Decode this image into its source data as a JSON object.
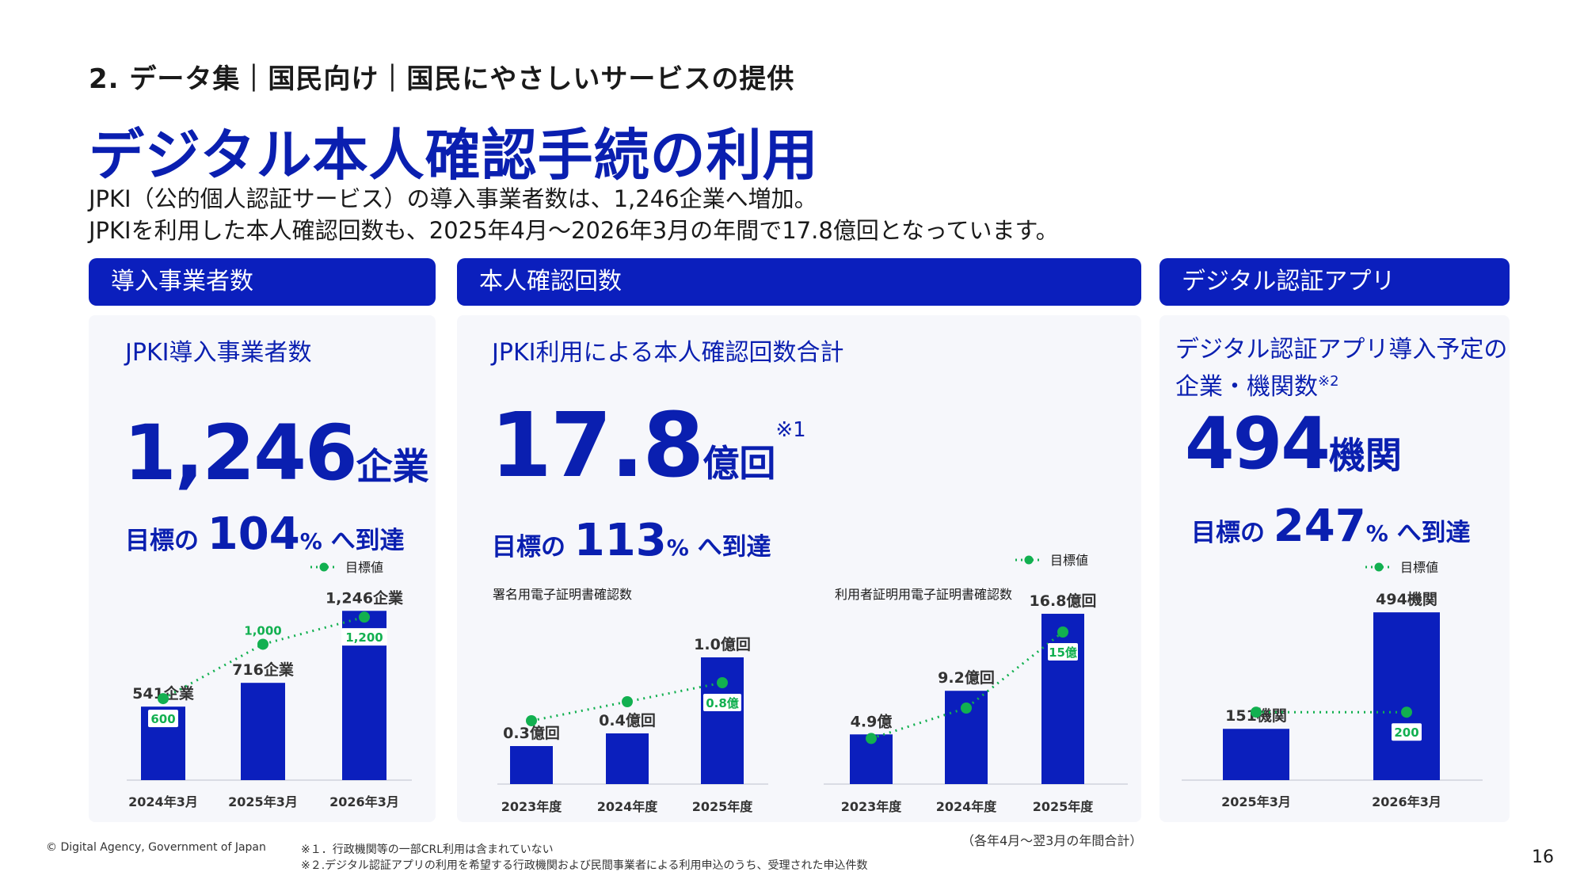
{
  "breadcrumb": "2. データ集｜国民向け｜国民にやさしいサービスの提供",
  "title": "デジタル本人確認手続の利用",
  "lead": [
    "JPKI（公的個人認証サービス）の導入事業者数は、1,246企業へ増加。",
    "JPKIを利用した本人確認回数も、2025年4月〜2026年3月の年間で17.8億回となっています。"
  ],
  "legend_label": "目標値",
  "colors": {
    "accent": "#0b1fbd",
    "target": "#12b050",
    "panel": "#f6f7fb"
  },
  "panels": [
    {
      "header": "導入事業者数",
      "title": "JPKI導入事業者数",
      "big_value": "1,246",
      "big_unit": "企業",
      "target_prefix": "目標の",
      "target_value": "104",
      "target_pct": "%",
      "target_suffix": "へ到達"
    },
    {
      "header": "本人確認回数",
      "title": "JPKI利用による本人確認回数合計",
      "big_value": "17.8",
      "big_unit": "億回",
      "big_note": "※1",
      "target_prefix": "目標の",
      "target_value": "113",
      "target_pct": "%",
      "target_suffix": "へ到達"
    },
    {
      "header": "デジタル認証アプリ",
      "title_lines": [
        "デジタル認証アプリ導入予定の",
        "企業・機関数"
      ],
      "title_note": "※2",
      "big_value": "494",
      "big_unit": "機関",
      "target_prefix": "目標の",
      "target_value": "247",
      "target_pct": "%",
      "target_suffix": "へ到達"
    }
  ],
  "chart_data": [
    {
      "type": "bar",
      "categories": [
        "2024年3月",
        "2025年3月",
        "2026年3月"
      ],
      "values": [
        541,
        716,
        1246
      ],
      "value_labels": [
        "541企業",
        "716企業",
        "1,246企業"
      ],
      "target_values": [
        600,
        1000,
        1200
      ],
      "target_labels": [
        "600",
        "1,000",
        "1,200"
      ],
      "legend": "目標値",
      "ylim": [
        0,
        1300
      ]
    },
    {
      "type": "bar",
      "title": "署名用電子証明書確認数",
      "categories": [
        "2023年度",
        "2024年度",
        "2025年度"
      ],
      "values": [
        0.3,
        0.4,
        1.0
      ],
      "value_labels": [
        "0.3億回",
        "0.4億回",
        "1.0億回"
      ],
      "target_values": [
        0.5,
        0.65,
        0.8
      ],
      "target_labels": [
        "",
        "",
        "0.8億"
      ],
      "ylim": [
        0,
        1.2
      ]
    },
    {
      "type": "bar",
      "title": "利用者証明用電子証明書確認数",
      "categories": [
        "2023年度",
        "2024年度",
        "2025年度"
      ],
      "values": [
        4.9,
        9.2,
        16.8
      ],
      "value_labels": [
        "4.9億",
        "9.2億回",
        "16.8億回"
      ],
      "target_values": [
        4.5,
        7.5,
        15
      ],
      "target_labels": [
        "",
        "",
        "15億"
      ],
      "legend": "目標値",
      "ylim": [
        0,
        17.5
      ]
    },
    {
      "type": "bar",
      "categories": [
        "2025年3月",
        "2026年3月"
      ],
      "values": [
        151,
        494
      ],
      "value_labels": [
        "151機関",
        "494機関"
      ],
      "target_values": [
        200,
        200
      ],
      "target_labels": [
        "",
        "200"
      ],
      "legend": "目標値",
      "ylim": [
        0,
        520
      ]
    }
  ],
  "footer": {
    "copyright": "© Digital Agency, Government of Japan",
    "notes": [
      "※１．行政機関等の一部CRL利用は含まれていない",
      "※２.デジタル認証アプリの利用を希望する行政機関および民間事業者による利用申込のうち、受理された申込件数"
    ],
    "period_note": "（各年4月〜翌3月の年間合計）",
    "page_number": "16"
  }
}
